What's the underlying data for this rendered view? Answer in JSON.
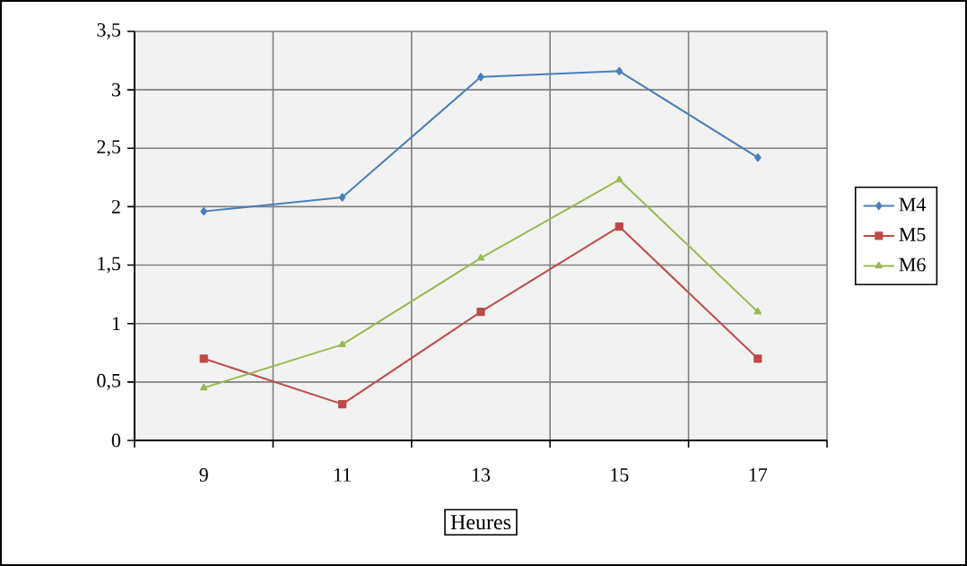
{
  "chart_data": {
    "type": "line",
    "xlabel": "Heures",
    "categories": [
      "9",
      "11",
      "13",
      "15",
      "17"
    ],
    "series": [
      {
        "name": "M4",
        "color": "#4a7ebb",
        "marker": "diamond",
        "values": [
          1.96,
          2.08,
          3.11,
          3.16,
          2.42
        ]
      },
      {
        "name": "M5",
        "color": "#be4b48",
        "marker": "square",
        "values": [
          0.7,
          0.31,
          1.1,
          1.83,
          0.7
        ]
      },
      {
        "name": "M6",
        "color": "#98b954",
        "marker": "triangle",
        "values": [
          0.45,
          0.82,
          1.56,
          2.23,
          1.1
        ]
      }
    ],
    "ylim": [
      0,
      3.5
    ],
    "yticks": [
      0,
      {
        "value": 0.5,
        "label": "0,5"
      },
      1,
      {
        "value": 1.5,
        "label": "1,5"
      },
      2,
      {
        "value": 2.5,
        "label": "2,5"
      },
      3,
      {
        "value": 3.5,
        "label": "3,5"
      }
    ],
    "grid": true,
    "legend": "right"
  }
}
